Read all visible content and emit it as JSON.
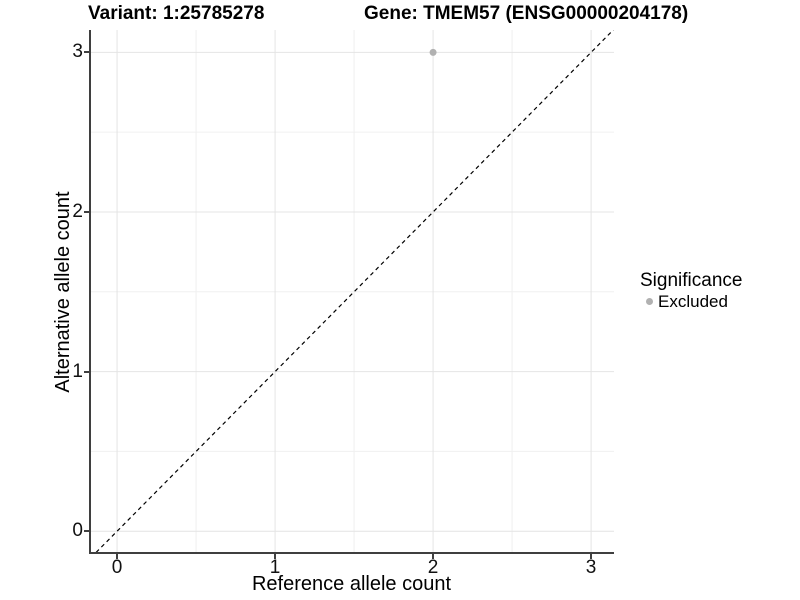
{
  "header": {
    "variant_title": "Variant: 1:25785278",
    "gene_title": "Gene: TMEM57 (ENSG00000204178)"
  },
  "chart_data": {
    "type": "scatter",
    "title_left": "Variant: 1:25785278",
    "title_right": "Gene: TMEM57 (ENSG00000204178)",
    "xlabel": "Reference allele count",
    "ylabel": "Alternative allele count",
    "xlim": [
      -0.165,
      3.145
    ],
    "ylim": [
      -0.13,
      3.14
    ],
    "x_ticks": [
      0,
      1,
      2,
      3
    ],
    "y_ticks": [
      0,
      1,
      2,
      3
    ],
    "x_minor_ticks": [
      0.5,
      1.5,
      2.5
    ],
    "y_minor_ticks": [
      0.5,
      1.5,
      2.5
    ],
    "grid": true,
    "reference_line": {
      "kind": "identity-diagonal",
      "style": "dashed",
      "color": "#000000"
    },
    "series": [
      {
        "name": "Excluded",
        "color": "#b1b1b1",
        "points": [
          {
            "x": 2,
            "y": 3
          }
        ]
      }
    ],
    "legend": {
      "title": "Significance",
      "position": "right",
      "items": [
        {
          "label": "Excluded",
          "color": "#b1b1b1"
        }
      ]
    },
    "colors": {
      "grid_major": "#e4e4e4",
      "grid_minor": "#f0f0f0",
      "axis_line": "#3f3f3f",
      "point_gray": "#b1b1b1"
    }
  }
}
